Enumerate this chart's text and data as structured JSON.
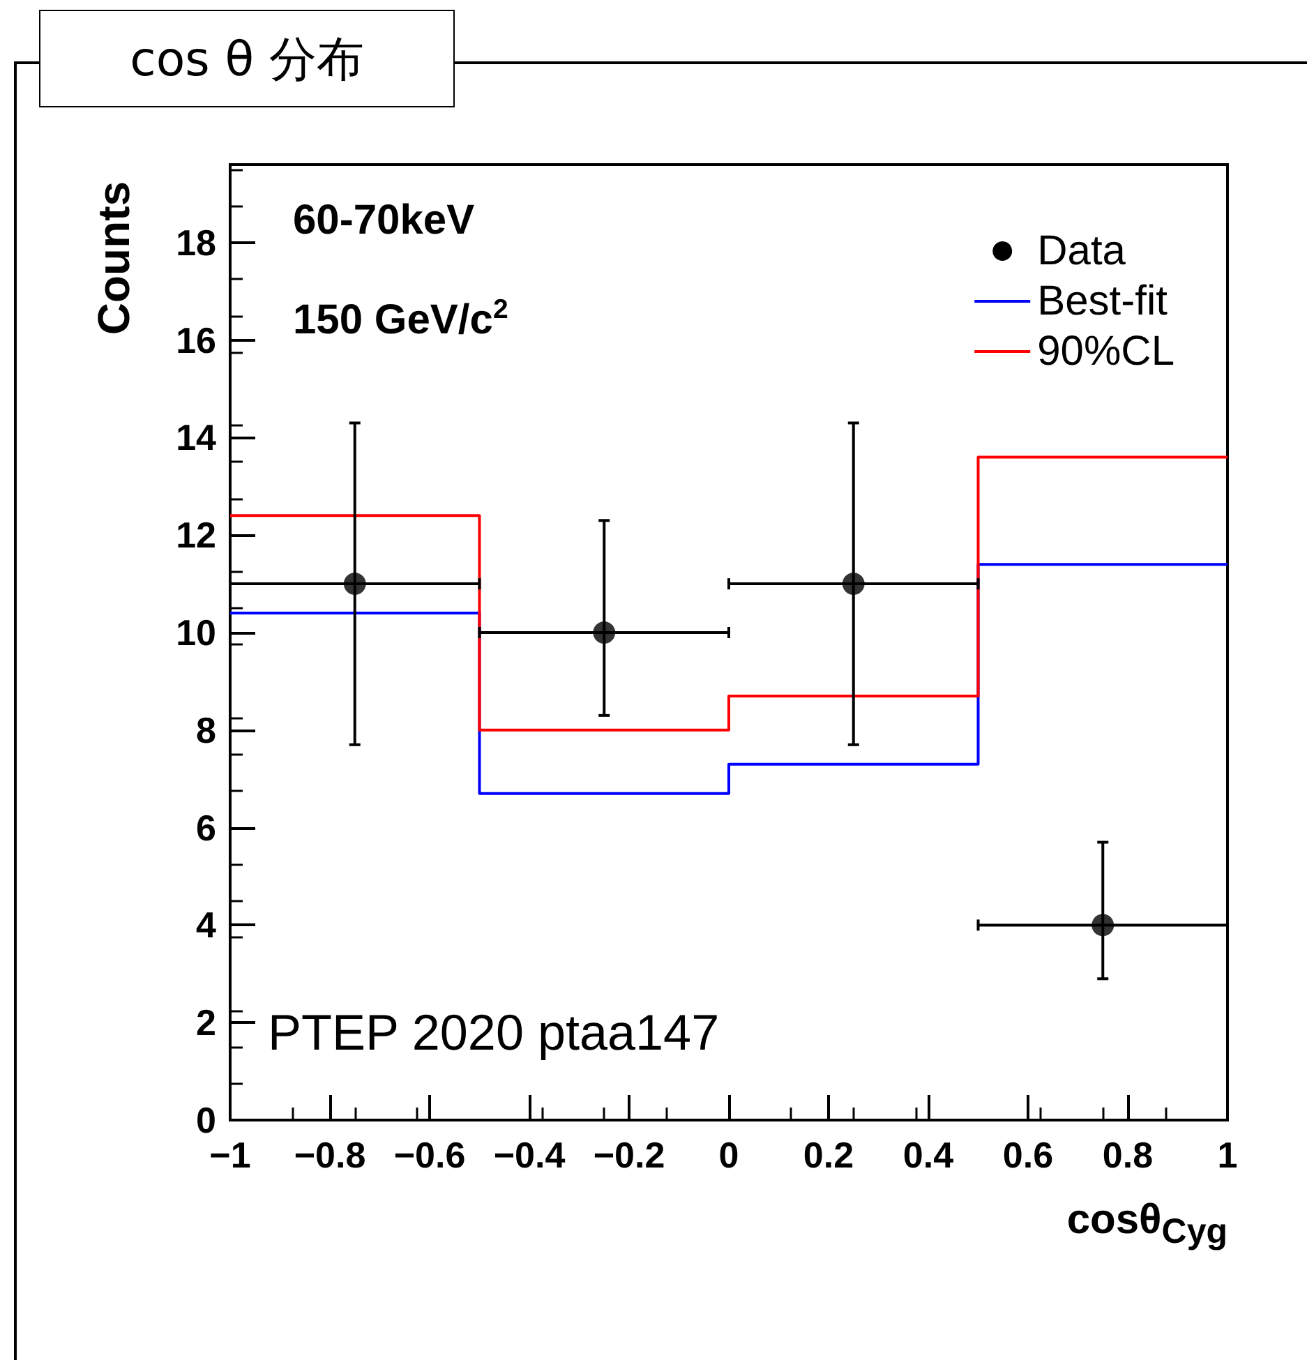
{
  "chart_data": {
    "type": "step",
    "title": "cos θ 分布",
    "xlabel": "cosθ$_{Cyg}$",
    "ylabel": "Counts",
    "annotations": [
      "60-70keV",
      "150 GeV/c$^{2}$",
      "PTEP 2020 ptaa147"
    ],
    "xlim": [
      -1,
      1
    ],
    "ylim": [
      0,
      19.6
    ],
    "xticks": [
      {
        "value": -1,
        "label": "−1"
      },
      {
        "value": -0.8,
        "label": "−0.8"
      },
      {
        "value": -0.6,
        "label": "−0.6"
      },
      {
        "value": -0.4,
        "label": "−0.4"
      },
      {
        "value": -0.2,
        "label": "−0.2"
      },
      0,
      0.2,
      0.4,
      0.6,
      0.8,
      1
    ],
    "yticks": [
      0,
      2,
      4,
      6,
      8,
      10,
      12,
      14,
      16,
      18
    ],
    "legend": "top right",
    "series": [
      {
        "name": "Data",
        "type": "scatter",
        "marker": "circle",
        "color": "#000000",
        "x": [
          -0.75,
          -0.25,
          0.25,
          0.75
        ],
        "values": [
          11,
          10,
          11,
          4
        ],
        "errors": [
          [
            7.7,
            14.3
          ],
          [
            8.3,
            12.3
          ],
          [
            7.7,
            14.3
          ],
          [
            2.9,
            5.7
          ]
        ],
        "xerrors": [
          0.25,
          0.25,
          0.25,
          0.25
        ]
      },
      {
        "name": "Best-fit",
        "color": "#0000ff",
        "x": [
          -1,
          -0.5,
          0,
          0.5,
          1
        ],
        "values": [
          10.4,
          6.7,
          7.3,
          11.4,
          11.4
        ]
      },
      {
        "name": "90%CL",
        "color": "#ff0000",
        "x": [
          -1,
          -0.5,
          0,
          0.5,
          1
        ],
        "values": [
          12.4,
          8.0,
          8.7,
          13.6,
          13.6
        ]
      }
    ]
  }
}
